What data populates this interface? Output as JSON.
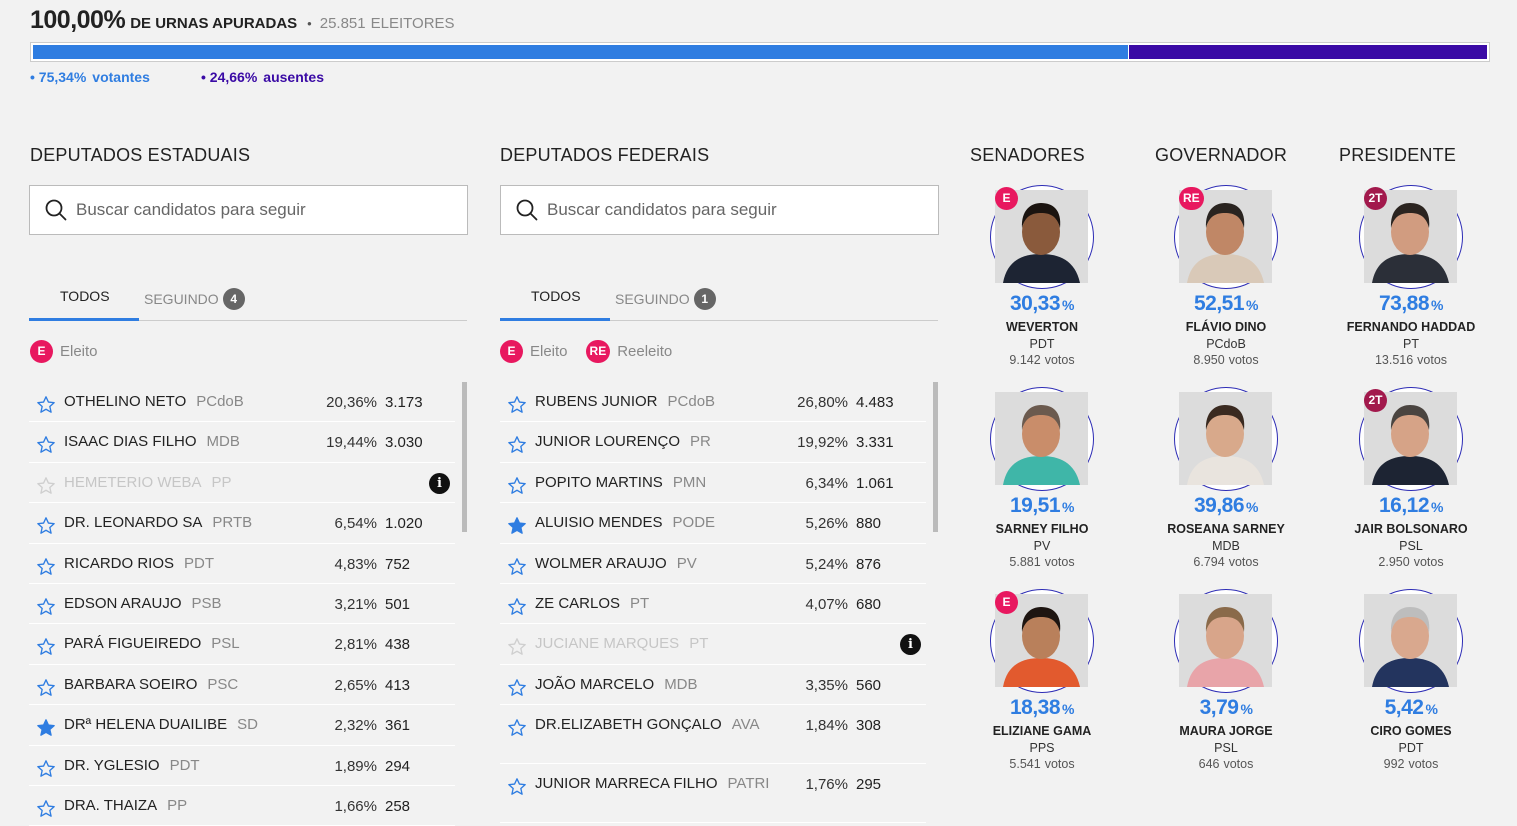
{
  "header": {
    "percent": "100,00%",
    "label": "DE URNAS APURADAS",
    "sep": "•",
    "electors": "25.851",
    "electors_label": "ELEITORES",
    "voters_pct": 75.34,
    "absent_pct": 24.66,
    "voters_pct_text": "• 75,34%",
    "voters_label": "votantes",
    "absent_pct_text": "• 24,66%",
    "absent_label": "ausentes"
  },
  "colors": {
    "accent": "#2f7de1",
    "absent": "#3a0aa5",
    "elected_badge": "#e8185f",
    "second_round_badge": "#a2194c"
  },
  "estaduais": {
    "title": "DEPUTADOS ESTADUAIS",
    "search_placeholder": "Buscar candidatos para seguir",
    "tab_all": "TODOS",
    "tab_following": "SEGUINDO",
    "following_count": "4",
    "legend": [
      {
        "badge": "E",
        "label": "Eleito"
      }
    ],
    "rows": [
      {
        "name": "OTHELINO NETO",
        "party": "PCdoB",
        "pct": "20,36%",
        "votes": "3.173",
        "followed": false
      },
      {
        "name": "ISAAC DIAS FILHO",
        "party": "MDB",
        "pct": "19,44%",
        "votes": "3.030",
        "followed": false
      },
      {
        "name": "HEMETERIO WEBA",
        "party": "PP",
        "pct": "",
        "votes": "",
        "followed": false,
        "dim": true
      },
      {
        "name": "DR. LEONARDO SA",
        "party": "PRTB",
        "pct": "6,54%",
        "votes": "1.020",
        "followed": false
      },
      {
        "name": "RICARDO RIOS",
        "party": "PDT",
        "pct": "4,83%",
        "votes": "752",
        "followed": false
      },
      {
        "name": "EDSON ARAUJO",
        "party": "PSB",
        "pct": "3,21%",
        "votes": "501",
        "followed": false
      },
      {
        "name": "PARÁ FIGUEIREDO",
        "party": "PSL",
        "pct": "2,81%",
        "votes": "438",
        "followed": false
      },
      {
        "name": "BARBARA SOEIRO",
        "party": "PSC",
        "pct": "2,65%",
        "votes": "413",
        "followed": false
      },
      {
        "name": "DRª HELENA DUAILIBE",
        "party": "SD",
        "pct": "2,32%",
        "votes": "361",
        "followed": true
      },
      {
        "name": "DR. YGLESIO",
        "party": "PDT",
        "pct": "1,89%",
        "votes": "294",
        "followed": false
      },
      {
        "name": "DRA. THAIZA",
        "party": "PP",
        "pct": "1,66%",
        "votes": "258",
        "followed": false
      }
    ]
  },
  "federais": {
    "title": "DEPUTADOS FEDERAIS",
    "search_placeholder": "Buscar candidatos para seguir",
    "tab_all": "TODOS",
    "tab_following": "SEGUINDO",
    "following_count": "1",
    "legend": [
      {
        "badge": "E",
        "label": "Eleito"
      },
      {
        "badge": "RE",
        "label": "Reeleito"
      }
    ],
    "rows": [
      {
        "name": "RUBENS JUNIOR",
        "party": "PCdoB",
        "pct": "26,80%",
        "votes": "4.483",
        "followed": false
      },
      {
        "name": "JUNIOR LOURENÇO",
        "party": "PR",
        "pct": "19,92%",
        "votes": "3.331",
        "followed": false
      },
      {
        "name": "POPITO MARTINS",
        "party": "PMN",
        "pct": "6,34%",
        "votes": "1.061",
        "followed": false
      },
      {
        "name": "ALUISIO MENDES",
        "party": "PODE",
        "pct": "5,26%",
        "votes": "880",
        "followed": true
      },
      {
        "name": "WOLMER ARAUJO",
        "party": "PV",
        "pct": "5,24%",
        "votes": "876",
        "followed": false
      },
      {
        "name": "ZE CARLOS",
        "party": "PT",
        "pct": "4,07%",
        "votes": "680",
        "followed": false
      },
      {
        "name": "JUCIANE MARQUES",
        "party": "PT",
        "pct": "",
        "votes": "",
        "followed": false,
        "dim": true
      },
      {
        "name": "JOÃO MARCELO",
        "party": "MDB",
        "pct": "3,35%",
        "votes": "560",
        "followed": false
      },
      {
        "name": "DR.ELIZABETH GONÇALO",
        "party": "AVA",
        "pct": "1,84%",
        "votes": "308",
        "followed": false,
        "tall": true
      },
      {
        "name": "JUNIOR MARRECA FILHO",
        "party": "PATRI",
        "pct": "1,76%",
        "votes": "295",
        "followed": false,
        "tall": true
      }
    ]
  },
  "majority": [
    {
      "title": "SENADORES",
      "candidates": [
        {
          "badge": "E",
          "pct": "30,33",
          "name": "WEVERTON",
          "party": "PDT",
          "votes": "9.142",
          "votes_label": "votos",
          "skin": "#8a5a3c",
          "hair": "#1b1410",
          "suit": "#1d2433"
        },
        {
          "badge": "",
          "pct": "19,51",
          "name": "SARNEY FILHO",
          "party": "PV",
          "votes": "5.881",
          "votes_label": "votos",
          "skin": "#c98d6a",
          "hair": "#6b5a4e",
          "suit": "#3fb6a8"
        },
        {
          "badge": "E",
          "pct": "18,38",
          "name": "ELIZIANE GAMA",
          "party": "PPS",
          "votes": "5.541",
          "votes_label": "votos",
          "skin": "#b9805b",
          "hair": "#1e1511",
          "suit": "#e25a2e"
        }
      ]
    },
    {
      "title": "GOVERNADOR",
      "candidates": [
        {
          "badge": "RE",
          "pct": "52,51",
          "name": "FLÁVIO DINO",
          "party": "PCdoB",
          "votes": "8.950",
          "votes_label": "votos",
          "skin": "#c08766",
          "hair": "#2a2420",
          "suit": "#d9c9b8"
        },
        {
          "badge": "",
          "pct": "39,86",
          "name": "ROSEANA SARNEY",
          "party": "MDB",
          "votes": "6.794",
          "votes_label": "votos",
          "skin": "#d8a98b",
          "hair": "#3a2a20",
          "suit": "#e9e4de"
        },
        {
          "badge": "",
          "pct": "3,79",
          "name": "MAURA JORGE",
          "party": "PSL",
          "votes": "646",
          "votes_label": "votos",
          "skin": "#d8a58a",
          "hair": "#8a6a4a",
          "suit": "#e8a4a9"
        }
      ]
    },
    {
      "title": "PRESIDENTE",
      "candidates": [
        {
          "badge": "2T",
          "pct": "73,88",
          "name": "FERNANDO HADDAD",
          "party": "PT",
          "votes": "13.516",
          "votes_label": "votos",
          "skin": "#d19c80",
          "hair": "#2b2420",
          "suit": "#2b2f38"
        },
        {
          "badge": "2T",
          "pct": "16,12",
          "name": "JAIR BOLSONARO",
          "party": "PSL",
          "votes": "2.950",
          "votes_label": "votos",
          "skin": "#d6a387",
          "hair": "#4a4440",
          "suit": "#1d2433"
        },
        {
          "badge": "",
          "pct": "5,42",
          "name": "CIRO GOMES",
          "party": "PDT",
          "votes": "992",
          "votes_label": "votos",
          "skin": "#d9a88e",
          "hair": "#bdbdbd",
          "suit": "#23345e"
        }
      ]
    }
  ]
}
